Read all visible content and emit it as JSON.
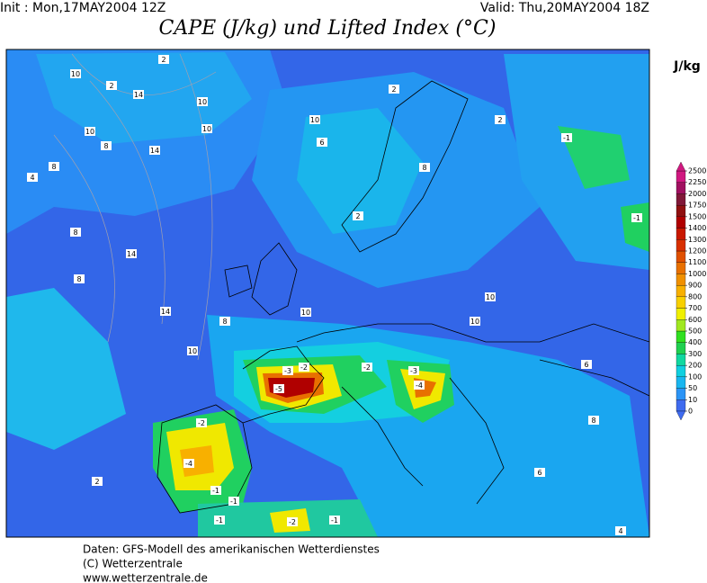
{
  "header": {
    "init": "Init : Mon,17MAY2004 12Z",
    "valid": "Valid: Thu,20MAY2004 18Z",
    "title": "CAPE (J/kg) und Lifted Index (°C)"
  },
  "colorbar": {
    "unit": "J/kg",
    "levels": [
      0,
      10,
      50,
      100,
      200,
      300,
      400,
      500,
      600,
      700,
      800,
      900,
      1000,
      1100,
      1200,
      1300,
      1400,
      1500,
      1750,
      2000,
      2250,
      2500
    ],
    "colors": [
      "#3f6bef",
      "#2b94f6",
      "#19b6f0",
      "#10d0e0",
      "#10d8a0",
      "#20d050",
      "#30e020",
      "#a0e820",
      "#f0f000",
      "#f8d000",
      "#f8b000",
      "#f09000",
      "#e87000",
      "#e05000",
      "#d83000",
      "#c81800",
      "#b00000",
      "#901010",
      "#801838",
      "#a01060",
      "#d01880"
    ]
  },
  "map": {
    "contour_labels": [
      "2",
      "10",
      "2",
      "14",
      "10",
      "10",
      "8",
      "10",
      "14",
      "8",
      "4",
      "8",
      "14",
      "8",
      "14",
      "10",
      "10",
      "6",
      "2",
      "2",
      "8",
      "2",
      "10",
      "10",
      "10",
      "8",
      "-1",
      "-1",
      "-3",
      "-5",
      "-2",
      "-2",
      "-4",
      "-3",
      "-4",
      "-1",
      "-2",
      "-1",
      "-2",
      "-1",
      "-1",
      "2",
      "6",
      "8",
      "4",
      "6"
    ]
  },
  "footer": {
    "lines": [
      "Daten: GFS-Modell des amerikanischen Wetterdienstes",
      "(C) Wetterzentrale",
      "www.wetterzentrale.de"
    ]
  }
}
